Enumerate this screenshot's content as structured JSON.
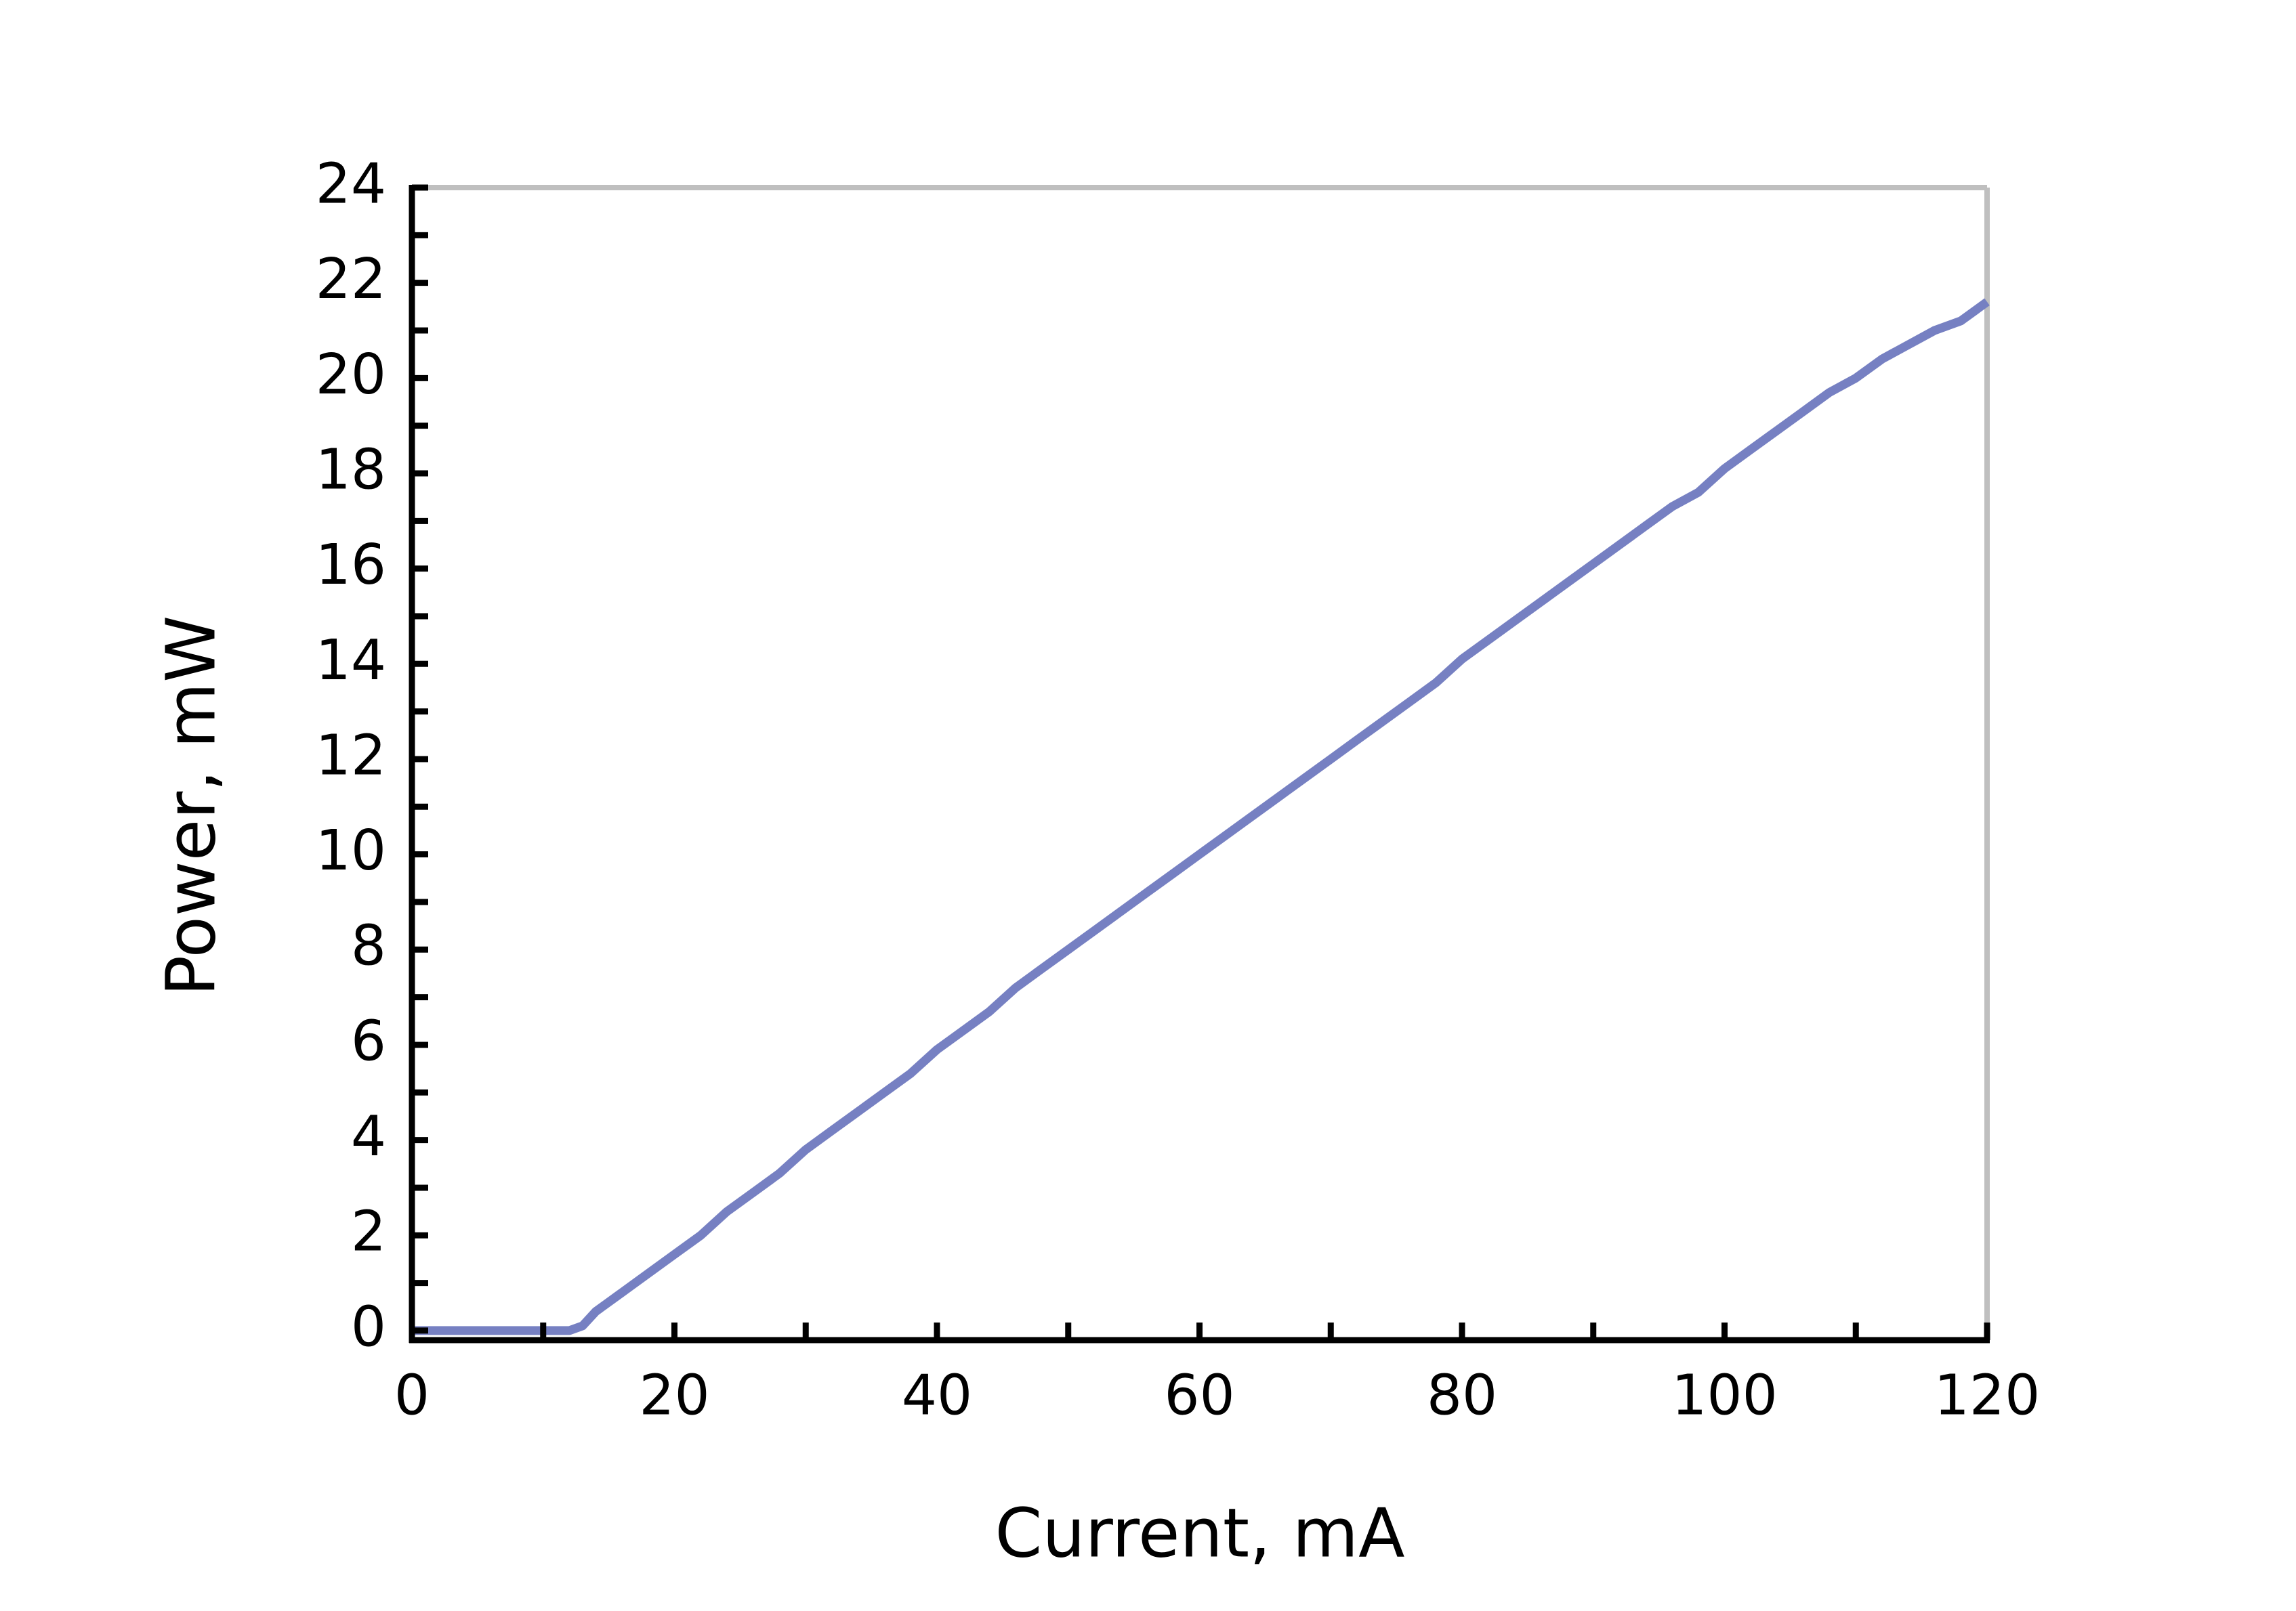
{
  "chart_data": {
    "type": "line",
    "x_label": "Current, mA",
    "y_label": "Power, mW",
    "x": [
      0,
      2,
      4,
      6,
      8,
      10,
      12,
      13,
      14,
      16,
      18,
      20,
      22,
      24,
      26,
      28,
      30,
      32,
      34,
      36,
      38,
      40,
      42,
      44,
      46,
      48,
      50,
      52,
      54,
      56,
      58,
      60,
      62,
      64,
      66,
      68,
      70,
      72,
      74,
      76,
      78,
      80,
      82,
      84,
      86,
      88,
      90,
      92,
      94,
      96,
      98,
      100,
      102,
      104,
      106,
      108,
      110,
      112,
      114,
      116,
      118,
      120
    ],
    "series": [
      {
        "name": "Power",
        "color": "#7680c2",
        "values": [
          0,
          0,
          0,
          0,
          0,
          0,
          0,
          0.1,
          0.4,
          0.8,
          1.2,
          1.6,
          2.0,
          2.5,
          2.9,
          3.3,
          3.8,
          4.2,
          4.6,
          5.0,
          5.4,
          5.9,
          6.3,
          6.7,
          7.2,
          7.6,
          8.0,
          8.4,
          8.8,
          9.2,
          9.6,
          10.0,
          10.4,
          10.8,
          11.2,
          11.6,
          12.0,
          12.4,
          12.8,
          13.2,
          13.6,
          14.1,
          14.5,
          14.9,
          15.3,
          15.7,
          16.1,
          16.5,
          16.9,
          17.3,
          17.6,
          18.1,
          18.5,
          18.9,
          19.3,
          19.7,
          20.0,
          20.4,
          20.7,
          21.0,
          21.2,
          21.6
        ]
      }
    ],
    "xlim": [
      0,
      120
    ],
    "ylim": [
      -0.2,
      24
    ],
    "xticks": [
      0,
      20,
      40,
      60,
      80,
      100,
      120
    ],
    "yticks": [
      0,
      2,
      4,
      6,
      8,
      10,
      12,
      14,
      16,
      18,
      20,
      22,
      24
    ],
    "xminorticks": [
      10,
      30,
      50,
      70,
      90,
      110
    ],
    "yminorticks": [
      1,
      3,
      5,
      7,
      9,
      11,
      13,
      15,
      17,
      19,
      21,
      23
    ],
    "grid": false
  }
}
